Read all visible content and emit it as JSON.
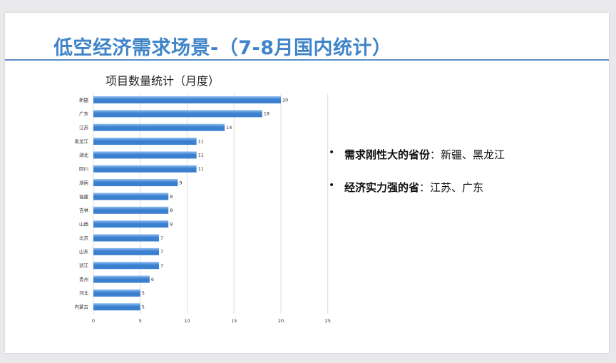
{
  "slide": {
    "title": "低空经济需求场景-（7-8月国内统计）",
    "chart_title": "项目数量统计（月度）"
  },
  "bullets": [
    {
      "strong": "需求刚性大的省份",
      "rest": "：新疆、黑龙江"
    },
    {
      "strong": "经济实力强的省",
      "rest": "：江苏、广东"
    }
  ],
  "colors": {
    "title": "#3f84c9",
    "bar": "#3b7fcf",
    "bar_light": "#8dbdf0",
    "grid": "#dcdcdc"
  },
  "chart_data": {
    "type": "bar",
    "orientation": "horizontal",
    "title": "项目数量统计（月度）",
    "categories": [
      "新疆",
      "广东",
      "江苏",
      "黑龙江",
      "湖北",
      "四川",
      "湖南",
      "福建",
      "吉林",
      "山西",
      "北京",
      "山东",
      "浙江",
      "贵州",
      "河北",
      "内蒙古"
    ],
    "values": [
      20,
      18,
      14,
      11,
      11,
      11,
      9,
      8,
      8,
      8,
      7,
      7,
      7,
      6,
      5,
      5
    ],
    "xlim": [
      0,
      25
    ],
    "xticks": [
      0,
      5,
      10,
      15,
      20,
      25
    ],
    "grid": true,
    "data_labels": true
  }
}
